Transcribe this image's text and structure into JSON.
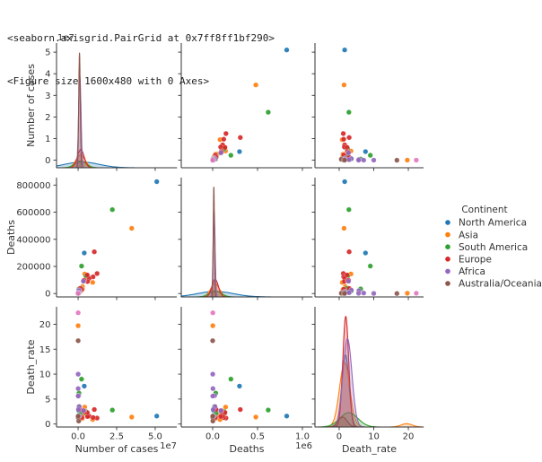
{
  "console_output": {
    "line1": "<seaborn.axisgrid.PairGrid at 0x7ff8ff1bf290>",
    "line2": "<Figure size 1600x480 with 0 Axes>"
  },
  "chart_data": {
    "type": "scatter",
    "subtype": "pairgrid-scatter-matrix-with-kde-diagonal",
    "title": "",
    "grid": false,
    "legend_position": "center right",
    "legend": {
      "title": "Continent",
      "entries": [
        {
          "label": "North America",
          "color": "#1f77b4"
        },
        {
          "label": "Asia",
          "color": "#ff7f0e"
        },
        {
          "label": "South America",
          "color": "#2ca02c"
        },
        {
          "label": "Europe",
          "color": "#d62728"
        },
        {
          "label": "Africa",
          "color": "#9467bd"
        },
        {
          "label": "Australia/Oceania",
          "color": "#8c564b"
        }
      ],
      "unlabeled_point_color": "#e377c2"
    },
    "variables": [
      {
        "key": "cases",
        "label": "Number of cases",
        "offset_text": "1e7",
        "x_range": [
          -14000000,
          64000000
        ],
        "y_range": [
          -3500000,
          54200000
        ],
        "x_ticks": {
          "values": [
            0,
            25000000,
            50000000
          ],
          "labels": [
            "0.0",
            "2.5",
            "5.0"
          ]
        },
        "y_ticks": {
          "values": [
            0,
            10000000,
            20000000,
            30000000,
            40000000,
            50000000
          ],
          "labels": [
            "0",
            "1",
            "2",
            "3",
            "4",
            "5"
          ]
        }
      },
      {
        "key": "deaths",
        "label": "Deaths",
        "offset_text": "1e6",
        "x_range": [
          -350000,
          1110000
        ],
        "y_range": [
          -25000,
          855000
        ],
        "x_ticks": {
          "values": [
            0,
            500000,
            1000000
          ],
          "labels": [
            "0.0",
            "0.5",
            "1.0"
          ]
        },
        "y_ticks": {
          "values": [
            0,
            200000,
            400000,
            600000,
            800000
          ],
          "labels": [
            "0",
            "200000",
            "400000",
            "600000",
            "800000"
          ]
        }
      },
      {
        "key": "rate",
        "label": "Death_rate",
        "offset_text": "",
        "x_range": [
          -7,
          24.4
        ],
        "y_range": [
          -0.6,
          23.5
        ],
        "x_ticks": {
          "values": [
            0,
            10,
            20
          ],
          "labels": [
            "0",
            "10",
            "20"
          ]
        },
        "y_ticks": {
          "values": [
            0,
            5,
            10,
            15,
            20
          ],
          "labels": [
            "0",
            "5",
            "10",
            "15",
            "20"
          ]
        }
      }
    ],
    "points": [
      {
        "continent": "North America",
        "cases": 51000000,
        "deaths": 825000,
        "rate": 1.6
      },
      {
        "continent": "North America",
        "cases": 3960000,
        "deaths": 299000,
        "rate": 7.6
      },
      {
        "continent": "North America",
        "cases": 2020000,
        "deaths": 30100,
        "rate": 1.5
      },
      {
        "continent": "North America",
        "cases": 964000,
        "deaths": 8300,
        "rate": 0.9
      },
      {
        "continent": "North America",
        "cases": 624000,
        "deaths": 16100,
        "rate": 2.6
      },
      {
        "continent": "North America",
        "cases": 576000,
        "deaths": 7300,
        "rate": 1.3
      },
      {
        "continent": "North America",
        "cases": 482000,
        "deaths": 7400,
        "rate": 1.5
      },
      {
        "continent": "North America",
        "cases": 380000,
        "deaths": 10400,
        "rate": 2.7
      },
      {
        "continent": "Asia",
        "cases": 34800000,
        "deaths": 481000,
        "rate": 1.4
      },
      {
        "continent": "Asia",
        "cases": 9480000,
        "deaths": 82400,
        "rate": 0.9
      },
      {
        "continent": "Asia",
        "cases": 6190000,
        "deaths": 131600,
        "rate": 2.1
      },
      {
        "continent": "Asia",
        "cases": 4260000,
        "deaths": 144100,
        "rate": 3.4
      },
      {
        "continent": "Asia",
        "cases": 2840000,
        "deaths": 51200,
        "rate": 1.8
      },
      {
        "continent": "Asia",
        "cases": 2750000,
        "deaths": 31500,
        "rate": 1.1
      },
      {
        "continent": "Asia",
        "cases": 2090000,
        "deaths": 24100,
        "rate": 1.2
      },
      {
        "continent": "Asia",
        "cases": 1730000,
        "deaths": 18400,
        "rate": 1.1
      },
      {
        "continent": "Asia",
        "cases": 540000,
        "deaths": 7700,
        "rate": 1.4
      },
      {
        "continent": "Asia",
        "cases": 10100,
        "deaths": 1990,
        "rate": 19.7
      },
      {
        "continent": "South America",
        "cases": 22200000,
        "deaths": 619000,
        "rate": 2.8
      },
      {
        "continent": "South America",
        "cases": 5450000,
        "deaths": 117100,
        "rate": 2.1
      },
      {
        "continent": "South America",
        "cases": 5120000,
        "deaths": 129900,
        "rate": 2.5
      },
      {
        "continent": "South America",
        "cases": 2260000,
        "deaths": 202700,
        "rate": 9.0
      },
      {
        "continent": "South America",
        "cases": 1800000,
        "deaths": 39000,
        "rate": 2.2
      },
      {
        "continent": "South America",
        "cases": 560000,
        "deaths": 19600,
        "rate": 3.5
      },
      {
        "continent": "South America",
        "cases": 540000,
        "deaths": 33700,
        "rate": 6.2
      },
      {
        "continent": "Europe",
        "cases": 12300000,
        "deaths": 148000,
        "rate": 1.2
      },
      {
        "continent": "Europe",
        "cases": 10500000,
        "deaths": 308000,
        "rate": 2.9
      },
      {
        "continent": "Europe",
        "cases": 9700000,
        "deaths": 123000,
        "rate": 1.3
      },
      {
        "continent": "Europe",
        "cases": 7100000,
        "deaths": 111000,
        "rate": 1.6
      },
      {
        "continent": "Europe",
        "cases": 6100000,
        "deaths": 89000,
        "rate": 1.5
      },
      {
        "continent": "Europe",
        "cases": 5900000,
        "deaths": 137000,
        "rate": 2.3
      },
      {
        "continent": "Europe",
        "cases": 4100000,
        "deaths": 97000,
        "rate": 2.4
      },
      {
        "continent": "Europe",
        "cases": 3700000,
        "deaths": 98000,
        "rate": 2.7
      },
      {
        "continent": "Europe",
        "cases": 2400000,
        "deaths": 31000,
        "rate": 1.3
      },
      {
        "continent": "Europe",
        "cases": 1300000,
        "deaths": 38000,
        "rate": 2.9
      },
      {
        "continent": "Africa",
        "cases": 3400000,
        "deaths": 91000,
        "rate": 2.7
      },
      {
        "continent": "Africa",
        "cases": 950000,
        "deaths": 14800,
        "rate": 1.6
      },
      {
        "continent": "Africa",
        "cases": 720000,
        "deaths": 25500,
        "rate": 3.5
      },
      {
        "continent": "Africa",
        "cases": 440000,
        "deaths": 6900,
        "rate": 1.6
      },
      {
        "continent": "Africa",
        "cases": 380000,
        "deaths": 21500,
        "rate": 5.7
      },
      {
        "continent": "Africa",
        "cases": 220000,
        "deaths": 6300,
        "rate": 2.9
      },
      {
        "continent": "Africa",
        "cases": 46000,
        "deaths": 3300,
        "rate": 7.1
      },
      {
        "continent": "Africa",
        "cases": 23000,
        "deaths": 1300,
        "rate": 5.6
      },
      {
        "continent": "Africa",
        "cases": 10000,
        "deaths": 1000,
        "rate": 10.0
      },
      {
        "continent": "Australia/Oceania",
        "cases": 395000,
        "deaths": 2200,
        "rate": 0.6
      },
      {
        "continent": "Australia/Oceania",
        "cases": 52000,
        "deaths": 700,
        "rate": 1.3
      },
      {
        "continent": "Australia/Oceania",
        "cases": 36000,
        "deaths": 600,
        "rate": 1.6
      },
      {
        "continent": "Australia/Oceania",
        "cases": 600,
        "deaths": 100,
        "rate": 16.7
      },
      {
        "continent": "",
        "color": "#e377c2",
        "cases": 9000,
        "deaths": 2000,
        "rate": 22.3
      }
    ],
    "kde": {
      "cases": [
        {
          "color": "#1f77b4",
          "mean": 2500000,
          "sigma": 11000000,
          "height": 0.05
        },
        {
          "color": "#ff7f0e",
          "mean": 1600000,
          "sigma": 3000000,
          "height": 0.11
        },
        {
          "color": "#2ca02c",
          "mean": 1600000,
          "sigma": 3600000,
          "height": 0.06
        },
        {
          "color": "#d62728",
          "mean": 1700000,
          "sigma": 2200000,
          "height": 0.16
        },
        {
          "color": "#9467bd",
          "mean": 1100000,
          "sigma": 800000,
          "height": 0.8
        },
        {
          "color": "#8c564b",
          "mean": 900000,
          "sigma": 500000,
          "height": 1.0
        }
      ],
      "deaths": [
        {
          "color": "#1f77b4",
          "mean": 30000,
          "sigma": 200000,
          "height": 0.05
        },
        {
          "color": "#ff7f0e",
          "mean": 26000,
          "sigma": 50000,
          "height": 0.12
        },
        {
          "color": "#2ca02c",
          "mean": 30000,
          "sigma": 65000,
          "height": 0.055
        },
        {
          "color": "#d62728",
          "mean": 28000,
          "sigma": 36000,
          "height": 0.16
        },
        {
          "color": "#9467bd",
          "mean": 16000,
          "sigma": 11000,
          "height": 0.78
        },
        {
          "color": "#8c564b",
          "mean": 13000,
          "sigma": 7000,
          "height": 1.0
        }
      ],
      "rate": [
        {
          "color": "#1f77b4",
          "mean": 1.8,
          "sigma": 1.05,
          "height": 0.65
        },
        {
          "color": "#ff7f0e",
          "mean": 1.6,
          "sigma": 1.5,
          "height": 0.58
        },
        {
          "color": "#ff7f0e",
          "mean": 19.5,
          "sigma": 1.6,
          "height": 0.03
        },
        {
          "color": "#2ca02c",
          "mean": 2.8,
          "sigma": 2.6,
          "height": 0.13
        },
        {
          "color": "#d62728",
          "mean": 1.9,
          "sigma": 0.85,
          "height": 1.0
        },
        {
          "color": "#9467bd",
          "mean": 2.4,
          "sigma": 1.3,
          "height": 0.8
        },
        {
          "color": "#8c564b",
          "mean": 1.0,
          "sigma": 1.3,
          "height": 0.09
        }
      ]
    }
  }
}
